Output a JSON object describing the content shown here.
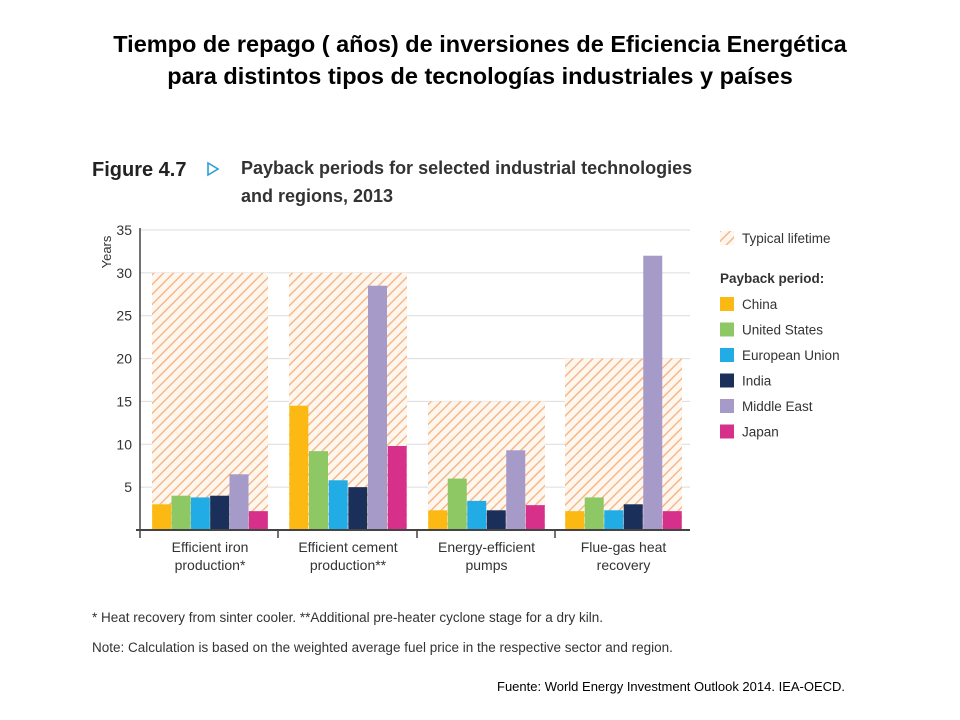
{
  "slide": {
    "title_line1": "Tiempo de repago ( años) de inversiones de Eficiencia Energética",
    "title_line2": "para distintos tipos de tecnologías industriales y países",
    "source": "Fuente: World Energy Investment Outlook 2014. IEA-OECD."
  },
  "chart_data": {
    "type": "bar",
    "figure_label": "Figure 4.7",
    "title": "Payback periods for selected industrial technologies and regions, 2013",
    "title_lines": [
      "Payback periods for selected industrial technologies",
      "and regions, 2013"
    ],
    "ylabel": "Years",
    "ylim": [
      0,
      35
    ],
    "yticks": [
      5,
      10,
      15,
      20,
      25,
      30,
      35
    ],
    "grid": true,
    "categories": [
      [
        "Efficient iron",
        "production*"
      ],
      [
        "Efficient cement",
        "production**"
      ],
      [
        "Energy-efficient",
        "pumps"
      ],
      [
        "Flue-gas heat",
        "recovery"
      ]
    ],
    "lifetime": {
      "name": "Typical lifetime",
      "values": [
        30,
        30,
        15,
        20
      ],
      "color": "#f6c9a6"
    },
    "legend_heading": "Payback period:",
    "legend_position": "right",
    "series": [
      {
        "name": "China",
        "color": "#fdb913",
        "values": [
          3,
          14.5,
          2.3,
          2.2
        ]
      },
      {
        "name": "United States",
        "color": "#8dc865",
        "values": [
          4,
          9.2,
          6,
          3.8
        ]
      },
      {
        "name": "European Union",
        "color": "#22ace6",
        "values": [
          3.8,
          5.8,
          3.4,
          2.3
        ]
      },
      {
        "name": "India",
        "color": "#1b2f5b",
        "values": [
          4,
          5,
          2.3,
          3
        ]
      },
      {
        "name": "Middle East",
        "color": "#a69ac9",
        "values": [
          6.5,
          28.5,
          9.3,
          32
        ]
      },
      {
        "name": "Japan",
        "color": "#d6308a",
        "values": [
          2.2,
          9.8,
          2.9,
          2.2
        ]
      }
    ],
    "footnote": "* Heat recovery from sinter cooler. **Additional pre-heater cyclone stage for a dry kiln.",
    "note": "Note: Calculation is based on the weighted average fuel price in the respective sector and region."
  }
}
